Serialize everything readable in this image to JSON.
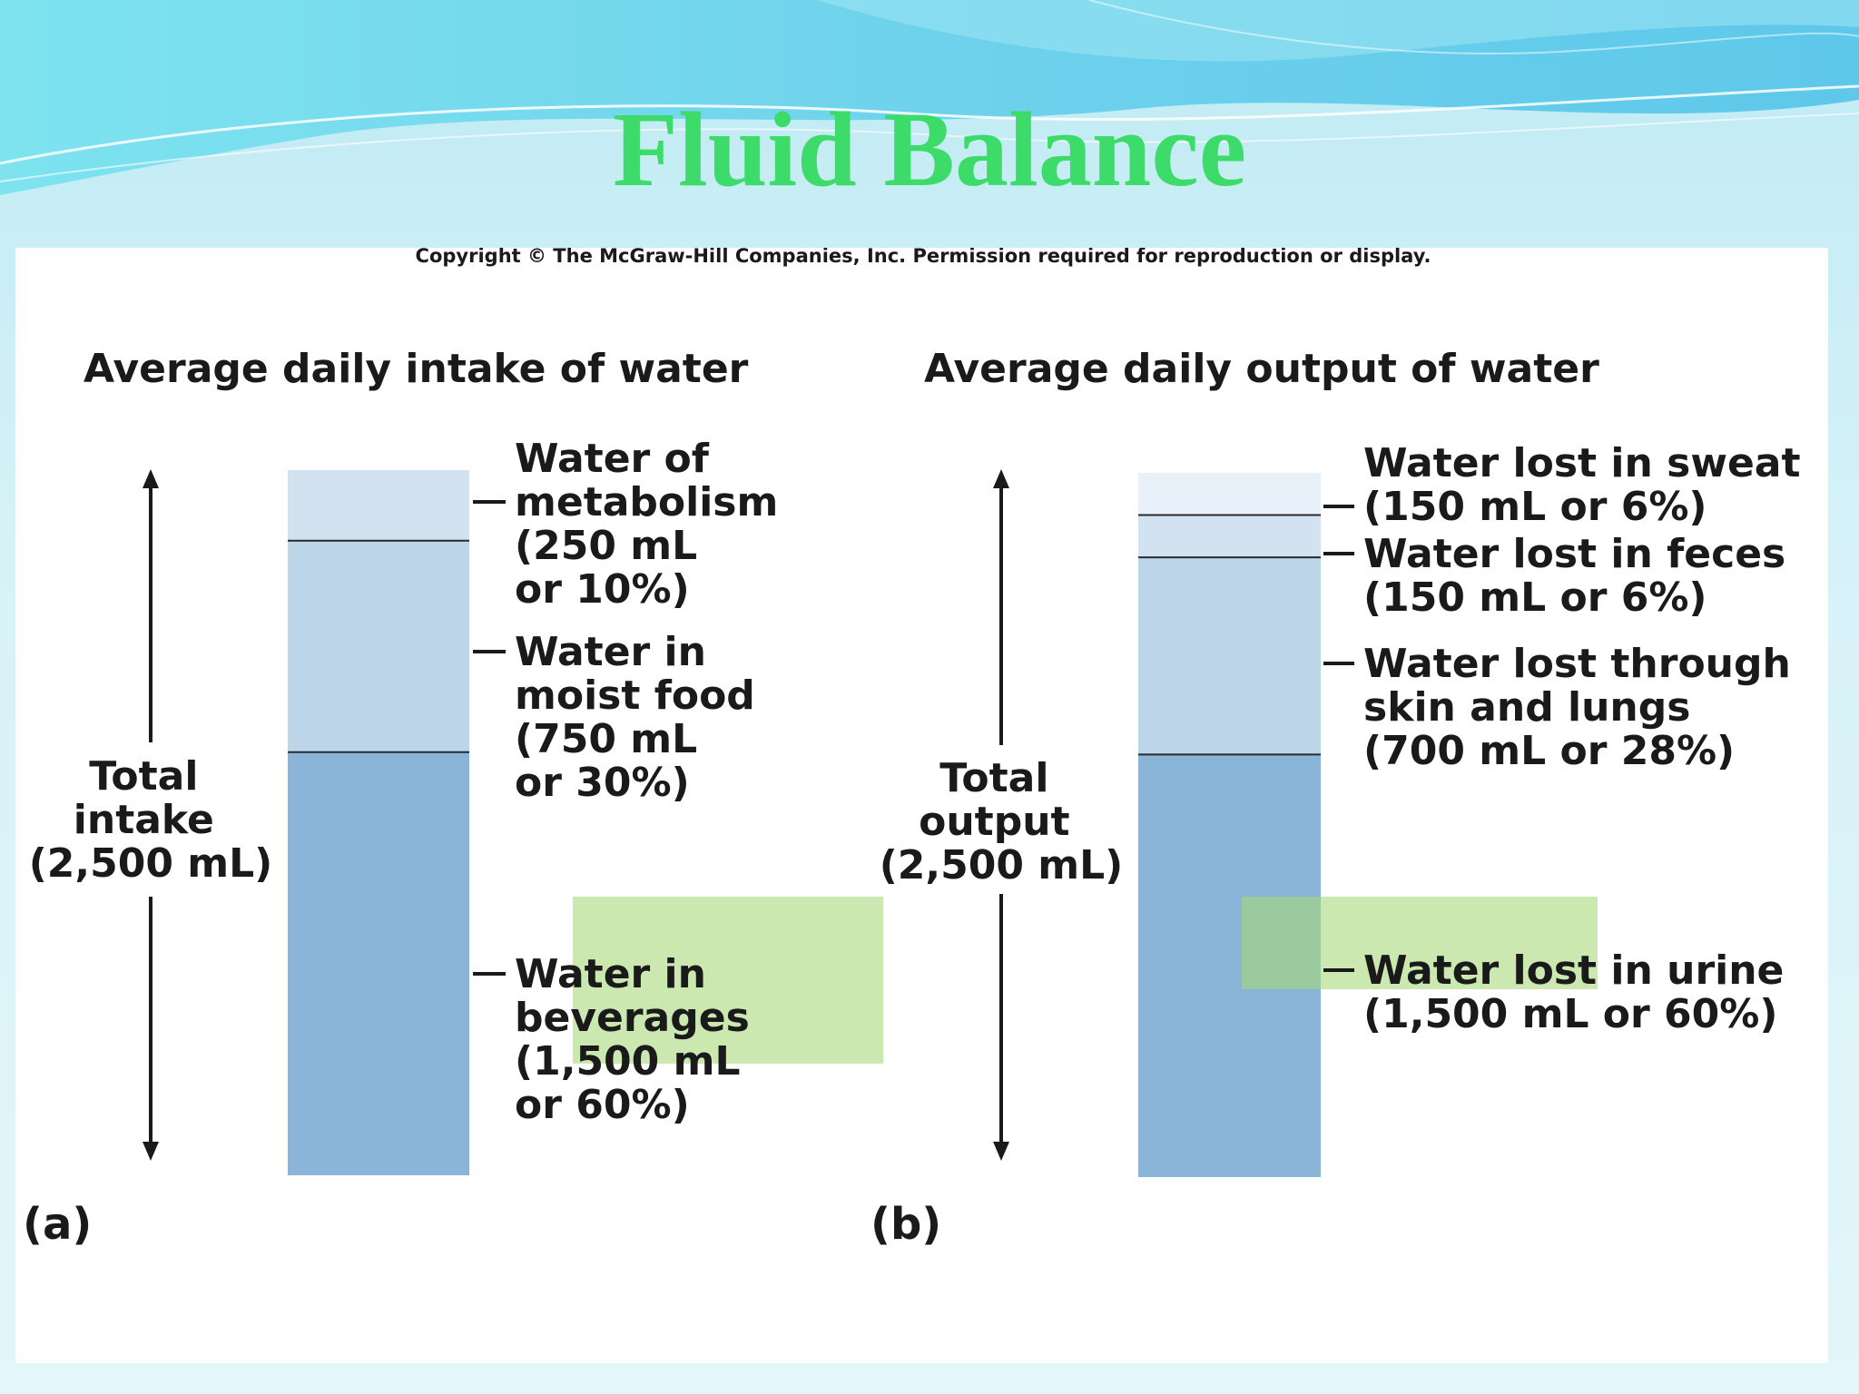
{
  "slide": {
    "title": "Fluid Balance",
    "copyright": "Copyright © The McGraw-Hill Companies, Inc. Permission required for reproduction or display."
  },
  "colors": {
    "title_green": "#3ddc6a",
    "seg_dark": "#8ab4d8",
    "seg_mid": "#bcd5e8",
    "seg_light": "#d3e2f1",
    "seg_lightest": "#e8f0f9",
    "highlight": "#a6d97a"
  },
  "chart_data": [
    {
      "type": "bar",
      "subtype": "stacked",
      "panel_tag": "(a)",
      "title": "Average daily intake of water",
      "total_label": [
        "Total",
        "intake",
        "(2,500 mL)"
      ],
      "total_ml": 2500,
      "segments": [
        {
          "name": "Water in beverages",
          "value_ml": 1500,
          "percent": 60,
          "label_lines": [
            "Water in",
            "beverages",
            "(1,500 mL",
            "or 60%)"
          ],
          "color": "#8ab4d8"
        },
        {
          "name": "Water in moist food",
          "value_ml": 750,
          "percent": 30,
          "label_lines": [
            "Water in",
            "moist food",
            "(750 mL",
            "or 30%)"
          ],
          "color": "#bcd5e8"
        },
        {
          "name": "Water of metabolism",
          "value_ml": 250,
          "percent": 10,
          "label_lines": [
            "Water of",
            "metabolism",
            "(250 mL",
            "or 10%)"
          ],
          "color": "#d3e2f1"
        }
      ]
    },
    {
      "type": "bar",
      "subtype": "stacked",
      "panel_tag": "(b)",
      "title": "Average daily output of water",
      "total_label": [
        "Total",
        "output",
        "(2,500 mL)"
      ],
      "total_ml": 2500,
      "segments": [
        {
          "name": "Water lost in urine",
          "value_ml": 1500,
          "percent": 60,
          "label_lines": [
            "Water lost in urine",
            "(1,500 mL or 60%)"
          ],
          "color": "#8ab4d8"
        },
        {
          "name": "Water lost through skin and lungs",
          "value_ml": 700,
          "percent": 28,
          "label_lines": [
            "Water lost through",
            "skin and lungs",
            "(700 mL or 28%)"
          ],
          "color": "#bcd5e8"
        },
        {
          "name": "Water lost in feces",
          "value_ml": 150,
          "percent": 6,
          "label_lines": [
            "Water lost in feces",
            "(150 mL or 6%)"
          ],
          "color": "#d3e2f1"
        },
        {
          "name": "Water lost in sweat",
          "value_ml": 150,
          "percent": 6,
          "label_lines": [
            "Water lost in sweat",
            "(150 mL or 6%)"
          ],
          "color": "#e8f0f9"
        }
      ]
    }
  ]
}
